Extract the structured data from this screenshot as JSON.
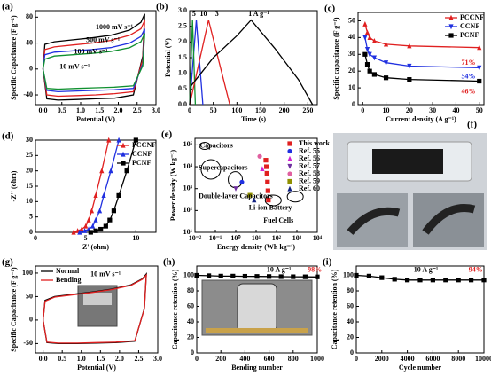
{
  "chart_data": [
    {
      "type": "line",
      "label": "(a)",
      "xlabel": "Potential (V)",
      "ylabel": "Specific Capacitance (F g⁻¹)",
      "legend": "inline",
      "xlim": [
        -0.2,
        3.0
      ],
      "xticks": [
        {
          "value": 0,
          "label": "0.0"
        },
        0.5,
        {
          "value": 1,
          "label": "1.0"
        },
        1.5,
        {
          "value": 2,
          "label": "2.0"
        },
        2.5,
        {
          "value": 3,
          "label": "3.0"
        }
      ],
      "ylim": [
        -55,
        90
      ],
      "yticks": [
        -40,
        0,
        40,
        80
      ],
      "series": [
        {
          "name": "1000 mV s⁻¹",
          "color": "#000000",
          "x": [
            0,
            0.05,
            0.3,
            0.8,
            1.3,
            1.8,
            2.3,
            2.6,
            2.7,
            2.65,
            2.4,
            1.9,
            1.4,
            0.9,
            0.4,
            0.1,
            0
          ],
          "values": [
            0,
            38,
            42,
            45,
            48,
            52,
            60,
            72,
            85,
            20,
            -40,
            -45,
            -46,
            -47,
            -48,
            -46,
            0
          ]
        },
        {
          "name": "500 mV s⁻¹",
          "color": "#e02020",
          "x": [
            0,
            0.05,
            0.3,
            0.8,
            1.3,
            1.8,
            2.3,
            2.6,
            2.7,
            2.65,
            2.4,
            1.9,
            1.4,
            0.9,
            0.4,
            0.1,
            0
          ],
          "values": [
            0,
            30,
            34,
            37,
            40,
            44,
            52,
            62,
            75,
            15,
            -35,
            -38,
            -40,
            -41,
            -42,
            -40,
            0
          ]
        },
        {
          "name": "100 mV s⁻¹",
          "color": "#2030e0",
          "x": [
            0,
            0.05,
            0.3,
            0.8,
            1.3,
            1.8,
            2.3,
            2.6,
            2.7,
            2.65,
            2.4,
            1.9,
            1.4,
            0.9,
            0.4,
            0.1,
            0
          ],
          "values": [
            0,
            22,
            26,
            28,
            30,
            33,
            40,
            50,
            62,
            8,
            -30,
            -32,
            -33,
            -34,
            -35,
            -33,
            0
          ]
        },
        {
          "name": "10 mV s⁻¹",
          "color": "#109030",
          "x": [
            0,
            0.05,
            0.3,
            0.8,
            1.3,
            1.8,
            2.3,
            2.6,
            2.7,
            2.65,
            2.4,
            1.9,
            1.4,
            0.9,
            0.4,
            0.1,
            0
          ],
          "values": [
            0,
            15,
            20,
            22,
            24,
            27,
            33,
            42,
            55,
            5,
            -26,
            -28,
            -29,
            -30,
            -31,
            -30,
            0
          ]
        }
      ]
    },
    {
      "type": "line",
      "label": "(b)",
      "xlabel": "Time (s)",
      "ylabel": "Potential (V)",
      "legend": "inline",
      "xlim": [
        0,
        270
      ],
      "xticks": [
        0,
        50,
        100,
        150,
        200,
        250
      ],
      "ylim": [
        0,
        3.0
      ],
      "yticks": [
        {
          "value": 0,
          "label": "0.0"
        },
        0.5,
        {
          "value": 1,
          "label": "1.0"
        },
        1.5,
        {
          "value": 2,
          "label": "2.0"
        },
        2.5,
        {
          "value": 3,
          "label": "3.0"
        }
      ],
      "series": [
        {
          "name": "5",
          "color": "#2030e0",
          "x": [
            0,
            14,
            28
          ],
          "values": [
            0,
            2.7,
            0
          ]
        },
        {
          "name": "10",
          "color": "#109030",
          "x": [
            0,
            6,
            12
          ],
          "values": [
            0,
            2.7,
            0
          ]
        },
        {
          "name": "3",
          "color": "#e02020",
          "x": [
            0,
            40,
            85
          ],
          "values": [
            0,
            2.7,
            0
          ]
        },
        {
          "name": "1 A g⁻¹",
          "color": "#000000",
          "x": [
            0,
            3,
            50,
            100,
            130,
            180,
            230,
            260
          ],
          "values": [
            0,
            0.6,
            1.5,
            2.2,
            2.7,
            1.8,
            0.8,
            0
          ]
        }
      ]
    },
    {
      "type": "line",
      "label": "(c)",
      "xlabel": "Current density (A g⁻¹)",
      "ylabel": "Specific capacitance (F g⁻¹)",
      "legend": "upper right",
      "xlim": [
        -2,
        52
      ],
      "xticks": [
        0,
        10,
        20,
        30,
        40,
        50
      ],
      "ylim": [
        0,
        55
      ],
      "yticks": [
        0,
        10,
        20,
        30,
        40,
        50
      ],
      "series": [
        {
          "name": "PCCNF",
          "color": "#e02020",
          "marker": "triangle",
          "x": [
            1,
            2,
            3,
            5,
            10,
            20,
            50
          ],
          "values": [
            48,
            43,
            40,
            38,
            36,
            35,
            34
          ]
        },
        {
          "name": "CCNF",
          "color": "#2030e0",
          "marker": "triangle-down",
          "x": [
            1,
            2,
            3,
            5,
            10,
            20,
            50
          ],
          "values": [
            40,
            33,
            30,
            28,
            25,
            23,
            22
          ]
        },
        {
          "name": "PCNF",
          "color": "#000000",
          "marker": "square",
          "x": [
            1,
            2,
            3,
            5,
            10,
            20,
            50
          ],
          "values": [
            30,
            24,
            20,
            18,
            16,
            15,
            14
          ]
        }
      ],
      "annotations": [
        {
          "text": "71%",
          "color": "#e02020"
        },
        {
          "text": "54%",
          "color": "#2030e0"
        },
        {
          "text": "46%",
          "color": "#e02020"
        }
      ]
    },
    {
      "type": "line",
      "label": "(d)",
      "xlabel": "Z' (ohm)",
      "ylabel": "-Z'' (ohm)",
      "legend": "upper right",
      "xlim": [
        0,
        12
      ],
      "xticks": [
        0,
        5,
        10
      ],
      "ylim": [
        0,
        30
      ],
      "yticks": [
        0,
        5,
        10,
        15,
        20,
        25,
        30
      ],
      "series": [
        {
          "name": "PCCNF",
          "color": "#e02020",
          "marker": "triangle",
          "x": [
            3.8,
            4.2,
            4.6,
            5,
            5.3,
            5.6,
            6,
            6.6,
            7.3
          ],
          "values": [
            0,
            0.5,
            1,
            2,
            4,
            7,
            12,
            20,
            30
          ]
        },
        {
          "name": "CCNF",
          "color": "#2030e0",
          "marker": "triangle",
          "x": [
            4.4,
            4.9,
            5.3,
            5.7,
            6,
            6.4,
            6.8,
            7.5,
            8.3
          ],
          "values": [
            0,
            0.5,
            1,
            2,
            4,
            7,
            12,
            20,
            30
          ]
        },
        {
          "name": "PCNF",
          "color": "#000000",
          "marker": "square",
          "x": [
            5.5,
            6,
            6.5,
            7,
            7.4,
            7.8,
            8.3,
            9.1,
            10
          ],
          "values": [
            0,
            0.5,
            1,
            2,
            4,
            7,
            12,
            20,
            30
          ]
        }
      ]
    },
    {
      "type": "scatter",
      "label": "(e)",
      "xlabel": "Energy density (Wh kg⁻¹)",
      "ylabel": "Power density (W kg⁻¹)",
      "legend": "upper right",
      "xlog": true,
      "ylog": true,
      "xlim": [
        0.01,
        10000
      ],
      "xticks": [
        {
          "value": 0.01,
          "label": "10⁻²"
        },
        {
          "value": 0.1,
          "label": "10⁻¹"
        },
        {
          "value": 1,
          "label": "10⁰"
        },
        {
          "value": 10,
          "label": "10¹"
        },
        {
          "value": 100,
          "label": "10²"
        },
        {
          "value": 1000,
          "label": "10³"
        },
        {
          "value": 10000,
          "label": "10⁴"
        }
      ],
      "ylim": [
        10,
        200000
      ],
      "yticks": [
        {
          "value": 10,
          "label": "10¹"
        },
        {
          "value": 100,
          "label": "10²"
        },
        {
          "value": 1000,
          "label": "10³"
        },
        {
          "value": 10000,
          "label": "10⁴"
        },
        {
          "value": 100000,
          "label": "10⁵"
        }
      ],
      "series": [
        {
          "name": "This work",
          "color": "#e02020",
          "marker": "square",
          "x": [
            30,
            32,
            34,
            36,
            38,
            40
          ],
          "values": [
            20000,
            10000,
            5000,
            2000,
            800,
            300
          ]
        },
        {
          "name": "Ref. 55",
          "color": "#2030e0",
          "marker": "circle",
          "x": [
            2
          ],
          "values": [
            2000
          ]
        },
        {
          "name": "Ref. 56",
          "color": "#d020d0",
          "marker": "triangle",
          "x": [
            20
          ],
          "values": [
            8000
          ]
        },
        {
          "name": "Ref. 57",
          "color": "#7030a0",
          "marker": "triangle-down",
          "x": [
            1
          ],
          "values": [
            1000
          ]
        },
        {
          "name": "Ref. 58",
          "color": "#e060a0",
          "marker": "circle",
          "x": [
            15
          ],
          "values": [
            30000
          ]
        },
        {
          "name": "Ref. 59",
          "color": "#909000",
          "marker": "square",
          "x": [
            5
          ],
          "values": [
            500
          ]
        },
        {
          "name": "Ref. 60",
          "color": "#102080",
          "marker": "triangle",
          "x": [
            8
          ],
          "values": [
            300
          ]
        }
      ],
      "annotations": [
        {
          "text": "Capacitors",
          "color": "#000000"
        },
        {
          "text": "Supercapacitors",
          "color": "#000000"
        },
        {
          "text": "Double-layer Capacitors",
          "color": "#000000"
        },
        {
          "text": "Li-ion Battery",
          "color": "#000000"
        },
        {
          "text": "Fuel Cells",
          "color": "#000000"
        }
      ]
    },
    {
      "type": "line",
      "label": "(g)",
      "xlabel": "Potential (V)",
      "ylabel": "Specific Capacitance (F g⁻¹)",
      "legend": "upper left",
      "xlim": [
        -0.2,
        3.0
      ],
      "xticks": [
        {
          "value": 0,
          "label": "0.0"
        },
        0.5,
        {
          "value": 1,
          "label": "1.0"
        },
        1.5,
        {
          "value": 2,
          "label": "2.0"
        },
        2.5,
        {
          "value": 3,
          "label": "3.0"
        }
      ],
      "ylim": [
        -70,
        115
      ],
      "yticks": [
        -50,
        0,
        50,
        100
      ],
      "series": [
        {
          "name": "Normal",
          "color": "#000000",
          "x": [
            0,
            0.05,
            0.3,
            0.8,
            1.3,
            1.8,
            2.3,
            2.6,
            2.7,
            2.65,
            2.4,
            1.9,
            1.4,
            0.9,
            0.4,
            0.1,
            0
          ],
          "values": [
            0,
            42,
            50,
            55,
            60,
            66,
            75,
            88,
            98,
            25,
            -45,
            -48,
            -49,
            -50,
            -50,
            -48,
            0
          ]
        },
        {
          "name": "Bending",
          "color": "#e02020",
          "x": [
            0,
            0.05,
            0.3,
            0.8,
            1.3,
            1.8,
            2.3,
            2.6,
            2.7,
            2.65,
            2.4,
            1.9,
            1.4,
            0.9,
            0.4,
            0.1,
            0
          ],
          "values": [
            0,
            40,
            49,
            54,
            59,
            65,
            74,
            87,
            96,
            24,
            -44,
            -47,
            -48,
            -49,
            -49,
            -47,
            0
          ]
        }
      ],
      "annotations": [
        {
          "text": "10 mV s⁻¹",
          "color": "#000000"
        }
      ]
    },
    {
      "type": "line",
      "label": "(h)",
      "xlabel": "Bending number",
      "ylabel": "Capacitance retention (%)",
      "xlim": [
        0,
        1000
      ],
      "xticks": [
        0,
        200,
        400,
        600,
        800,
        1000
      ],
      "ylim": [
        0,
        112
      ],
      "yticks": [
        0,
        20,
        40,
        60,
        80,
        100
      ],
      "series": [
        {
          "name": "",
          "color": "#000000",
          "marker": "square",
          "x": [
            0,
            100,
            200,
            300,
            400,
            500,
            600,
            700,
            800,
            900,
            1000
          ],
          "values": [
            100,
            99.5,
            99,
            99,
            98.8,
            98.6,
            98.5,
            98.3,
            98.2,
            98.1,
            98
          ]
        }
      ],
      "annotations": [
        {
          "text": "10 A g⁻¹",
          "color": "#000000"
        },
        {
          "text": "98%",
          "color": "#e02020"
        }
      ]
    },
    {
      "type": "line",
      "label": "(i)",
      "xlabel": "Cycle number",
      "ylabel": "Capacitance retention (%)",
      "xlim": [
        0,
        10000
      ],
      "xticks": [
        0,
        2000,
        4000,
        6000,
        8000,
        10000
      ],
      "ylim": [
        0,
        112
      ],
      "yticks": [
        0,
        20,
        40,
        60,
        80,
        100
      ],
      "series": [
        {
          "name": "",
          "color": "#000000",
          "marker": "square",
          "x": [
            0,
            1000,
            2000,
            3000,
            4000,
            5000,
            6000,
            7000,
            8000,
            9000,
            10000
          ],
          "values": [
            100,
            99,
            97,
            95,
            94,
            94,
            94,
            94,
            94,
            94,
            94
          ]
        }
      ],
      "annotations": [
        {
          "text": "10 A g⁻¹",
          "color": "#000000"
        },
        {
          "text": "94%",
          "color": "#e02020"
        }
      ]
    }
  ],
  "photo_panel": {
    "label": "(f)"
  }
}
